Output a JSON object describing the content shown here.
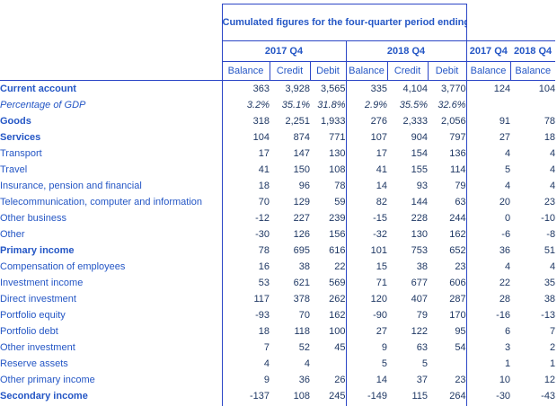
{
  "colors": {
    "border": "#2b46c6",
    "label_text": "#2456c5",
    "value_text": "#1f3864",
    "background": "#ffffff"
  },
  "table": {
    "title": "Cumulated figures for the four-quarter period ending",
    "group_headers": [
      {
        "label": "2017 Q4",
        "cols": [
          "Balance",
          "Credit",
          "Debit"
        ]
      },
      {
        "label": "2018 Q4",
        "cols": [
          "Balance",
          "Credit",
          "Debit"
        ]
      }
    ],
    "single_headers": [
      {
        "label": "2017 Q4",
        "col": "Balance"
      },
      {
        "label": "2018 Q4",
        "col": "Balance"
      }
    ],
    "rows": [
      {
        "label": "Current account",
        "style": "bold",
        "indent": 0,
        "values": [
          "363",
          "3,928",
          "3,565",
          "335",
          "4,104",
          "3,770",
          "124",
          "104"
        ]
      },
      {
        "label": "Percentage of GDP",
        "style": "italic",
        "indent": 1,
        "values": [
          "3.2%",
          "35.1%",
          "31.8%",
          "2.9%",
          "35.5%",
          "32.6%",
          "",
          ""
        ]
      },
      {
        "label": "Goods",
        "style": "bold",
        "indent": 2,
        "values": [
          "318",
          "2,251",
          "1,933",
          "276",
          "2,333",
          "2,056",
          "91",
          "78"
        ]
      },
      {
        "label": "Services",
        "style": "bold",
        "indent": 2,
        "values": [
          "104",
          "874",
          "771",
          "107",
          "904",
          "797",
          "27",
          "18"
        ]
      },
      {
        "label": "Transport",
        "style": "normal",
        "indent": 3,
        "values": [
          "17",
          "147",
          "130",
          "17",
          "154",
          "136",
          "4",
          "4"
        ]
      },
      {
        "label": "Travel",
        "style": "normal",
        "indent": 3,
        "values": [
          "41",
          "150",
          "108",
          "41",
          "155",
          "114",
          "5",
          "4"
        ]
      },
      {
        "label": "Insurance, pension and financial",
        "style": "normal",
        "indent": 3,
        "values": [
          "18",
          "96",
          "78",
          "14",
          "93",
          "79",
          "4",
          "4"
        ]
      },
      {
        "label": "Telecommunication, computer and information",
        "style": "normal",
        "indent": 3,
        "values": [
          "70",
          "129",
          "59",
          "82",
          "144",
          "63",
          "20",
          "23"
        ]
      },
      {
        "label": "Other business",
        "style": "normal",
        "indent": 3,
        "values": [
          "-12",
          "227",
          "239",
          "-15",
          "228",
          "244",
          "0",
          "-10"
        ]
      },
      {
        "label": "Other",
        "style": "normal",
        "indent": 3,
        "values": [
          "-30",
          "126",
          "156",
          "-32",
          "130",
          "162",
          "-6",
          "-8"
        ]
      },
      {
        "label": "Primary income",
        "style": "bold",
        "indent": 2,
        "values": [
          "78",
          "695",
          "616",
          "101",
          "753",
          "652",
          "36",
          "51"
        ]
      },
      {
        "label": "Compensation of employees",
        "style": "normal",
        "indent": 3,
        "values": [
          "16",
          "38",
          "22",
          "15",
          "38",
          "23",
          "4",
          "4"
        ]
      },
      {
        "label": "Investment income",
        "style": "normal",
        "indent": 3,
        "values": [
          "53",
          "621",
          "569",
          "71",
          "677",
          "606",
          "22",
          "35"
        ]
      },
      {
        "label": "Direct investment",
        "style": "normal",
        "indent": 4,
        "values": [
          "117",
          "378",
          "262",
          "120",
          "407",
          "287",
          "28",
          "38"
        ]
      },
      {
        "label": "Portfolio equity",
        "style": "normal",
        "indent": 4,
        "values": [
          "-93",
          "70",
          "162",
          "-90",
          "79",
          "170",
          "-16",
          "-13"
        ]
      },
      {
        "label": "Portfolio debt",
        "style": "normal",
        "indent": 4,
        "values": [
          "18",
          "118",
          "100",
          "27",
          "122",
          "95",
          "6",
          "7"
        ]
      },
      {
        "label": "Other investment",
        "style": "normal",
        "indent": 4,
        "values": [
          "7",
          "52",
          "45",
          "9",
          "63",
          "54",
          "3",
          "2"
        ]
      },
      {
        "label": "Reserve assets",
        "style": "normal",
        "indent": 4,
        "values": [
          "4",
          "4",
          "",
          "5",
          "5",
          "",
          "1",
          "1"
        ]
      },
      {
        "label": "Other primary income",
        "style": "normal",
        "indent": 3,
        "values": [
          "9",
          "36",
          "26",
          "14",
          "37",
          "23",
          "10",
          "12"
        ]
      },
      {
        "label": "Secondary income",
        "style": "bold",
        "indent": 2,
        "values": [
          "-137",
          "108",
          "245",
          "-149",
          "115",
          "264",
          "-30",
          "-43"
        ]
      }
    ]
  }
}
